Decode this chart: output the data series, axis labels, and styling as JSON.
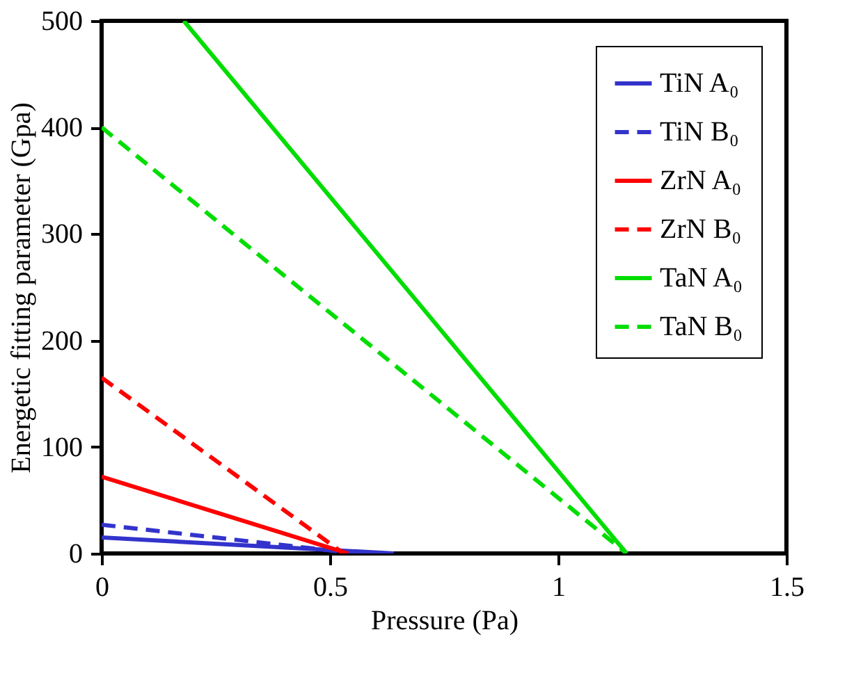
{
  "chart_data": {
    "type": "line",
    "xlabel": "Pressure (Pa)",
    "ylabel": "Energetic fitting parameter (Gpa)",
    "xlim": [
      0,
      1.5
    ],
    "xticks": [
      0,
      0.5,
      1,
      1.5
    ],
    "ylim": [
      0,
      500
    ],
    "yticks": [
      0,
      100,
      200,
      300,
      400,
      500
    ],
    "grid": false,
    "legend": "top right",
    "marker": "none",
    "series": [
      {
        "name": "TiN A₀",
        "color": "#3333cc",
        "line_style": "solid",
        "x": [
          0,
          0.64
        ],
        "values": [
          15,
          0
        ]
      },
      {
        "name": "TiN B₀",
        "color": "#3333cc",
        "line_style": "dashed",
        "x": [
          0,
          0.56
        ],
        "values": [
          27,
          0
        ]
      },
      {
        "name": "ZrN A₀",
        "color": "#ff0000",
        "line_style": "solid",
        "x": [
          0,
          0.54
        ],
        "values": [
          72,
          0
        ]
      },
      {
        "name": "ZrN B₀",
        "color": "#ff0000",
        "line_style": "dashed",
        "x": [
          0,
          0.53
        ],
        "values": [
          165,
          0
        ]
      },
      {
        "name": "TaN A₀",
        "color": "#00dd00",
        "line_style": "solid",
        "x": [
          0.18,
          1.15
        ],
        "values": [
          500,
          0
        ]
      },
      {
        "name": "TaN B₀",
        "color": "#00dd00",
        "line_style": "dashed",
        "x": [
          0,
          1.15
        ],
        "values": [
          400,
          0
        ]
      }
    ]
  }
}
